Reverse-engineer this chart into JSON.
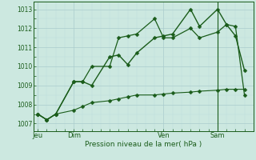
{
  "background_color": "#cce8e0",
  "grid_color_major": "#aacccc",
  "grid_color_minor": "#bbdddd",
  "line_color_dark": "#1a5c1a",
  "title": "Pression niveau de la mer( hPa )",
  "yticks": [
    1007,
    1008,
    1009,
    1010,
    1011,
    1012,
    1013
  ],
  "ylim": [
    1006.6,
    1013.4
  ],
  "xtick_labels": [
    "Jeu",
    "Dim",
    "Ven",
    "Sam"
  ],
  "xtick_positions": [
    0,
    4,
    14,
    20
  ],
  "xlim": [
    -0.5,
    24.0
  ],
  "vline_pos": 20,
  "series1_x": [
    0,
    1,
    2,
    4,
    5,
    6,
    8,
    9,
    10,
    11,
    13,
    14,
    15,
    17,
    18,
    20,
    21,
    22,
    23
  ],
  "series1_y": [
    1007.5,
    1007.2,
    1007.5,
    1009.2,
    1009.2,
    1009.0,
    1010.5,
    1010.6,
    1010.1,
    1010.7,
    1011.5,
    1011.6,
    1011.7,
    1013.0,
    1012.1,
    1013.0,
    1012.2,
    1011.6,
    1009.8
  ],
  "series2_x": [
    0,
    1,
    2,
    4,
    5,
    6,
    8,
    9,
    10,
    11,
    13,
    14,
    15,
    17,
    18,
    20,
    21,
    22,
    23
  ],
  "series2_y": [
    1007.5,
    1007.2,
    1007.5,
    1009.2,
    1009.2,
    1010.0,
    1010.0,
    1011.5,
    1011.6,
    1011.7,
    1012.5,
    1011.5,
    1011.5,
    1012.0,
    1011.5,
    1011.8,
    1012.2,
    1012.1,
    1008.5
  ],
  "series3_x": [
    0,
    1,
    2,
    4,
    5,
    6,
    8,
    9,
    10,
    11,
    13,
    14,
    15,
    17,
    18,
    20,
    21,
    22,
    23
  ],
  "series3_y": [
    1007.5,
    1007.2,
    1007.5,
    1007.7,
    1007.9,
    1008.1,
    1008.2,
    1008.3,
    1008.4,
    1008.5,
    1008.5,
    1008.55,
    1008.6,
    1008.65,
    1008.7,
    1008.75,
    1008.8,
    1008.8,
    1008.8
  ],
  "marker_size": 2.5
}
